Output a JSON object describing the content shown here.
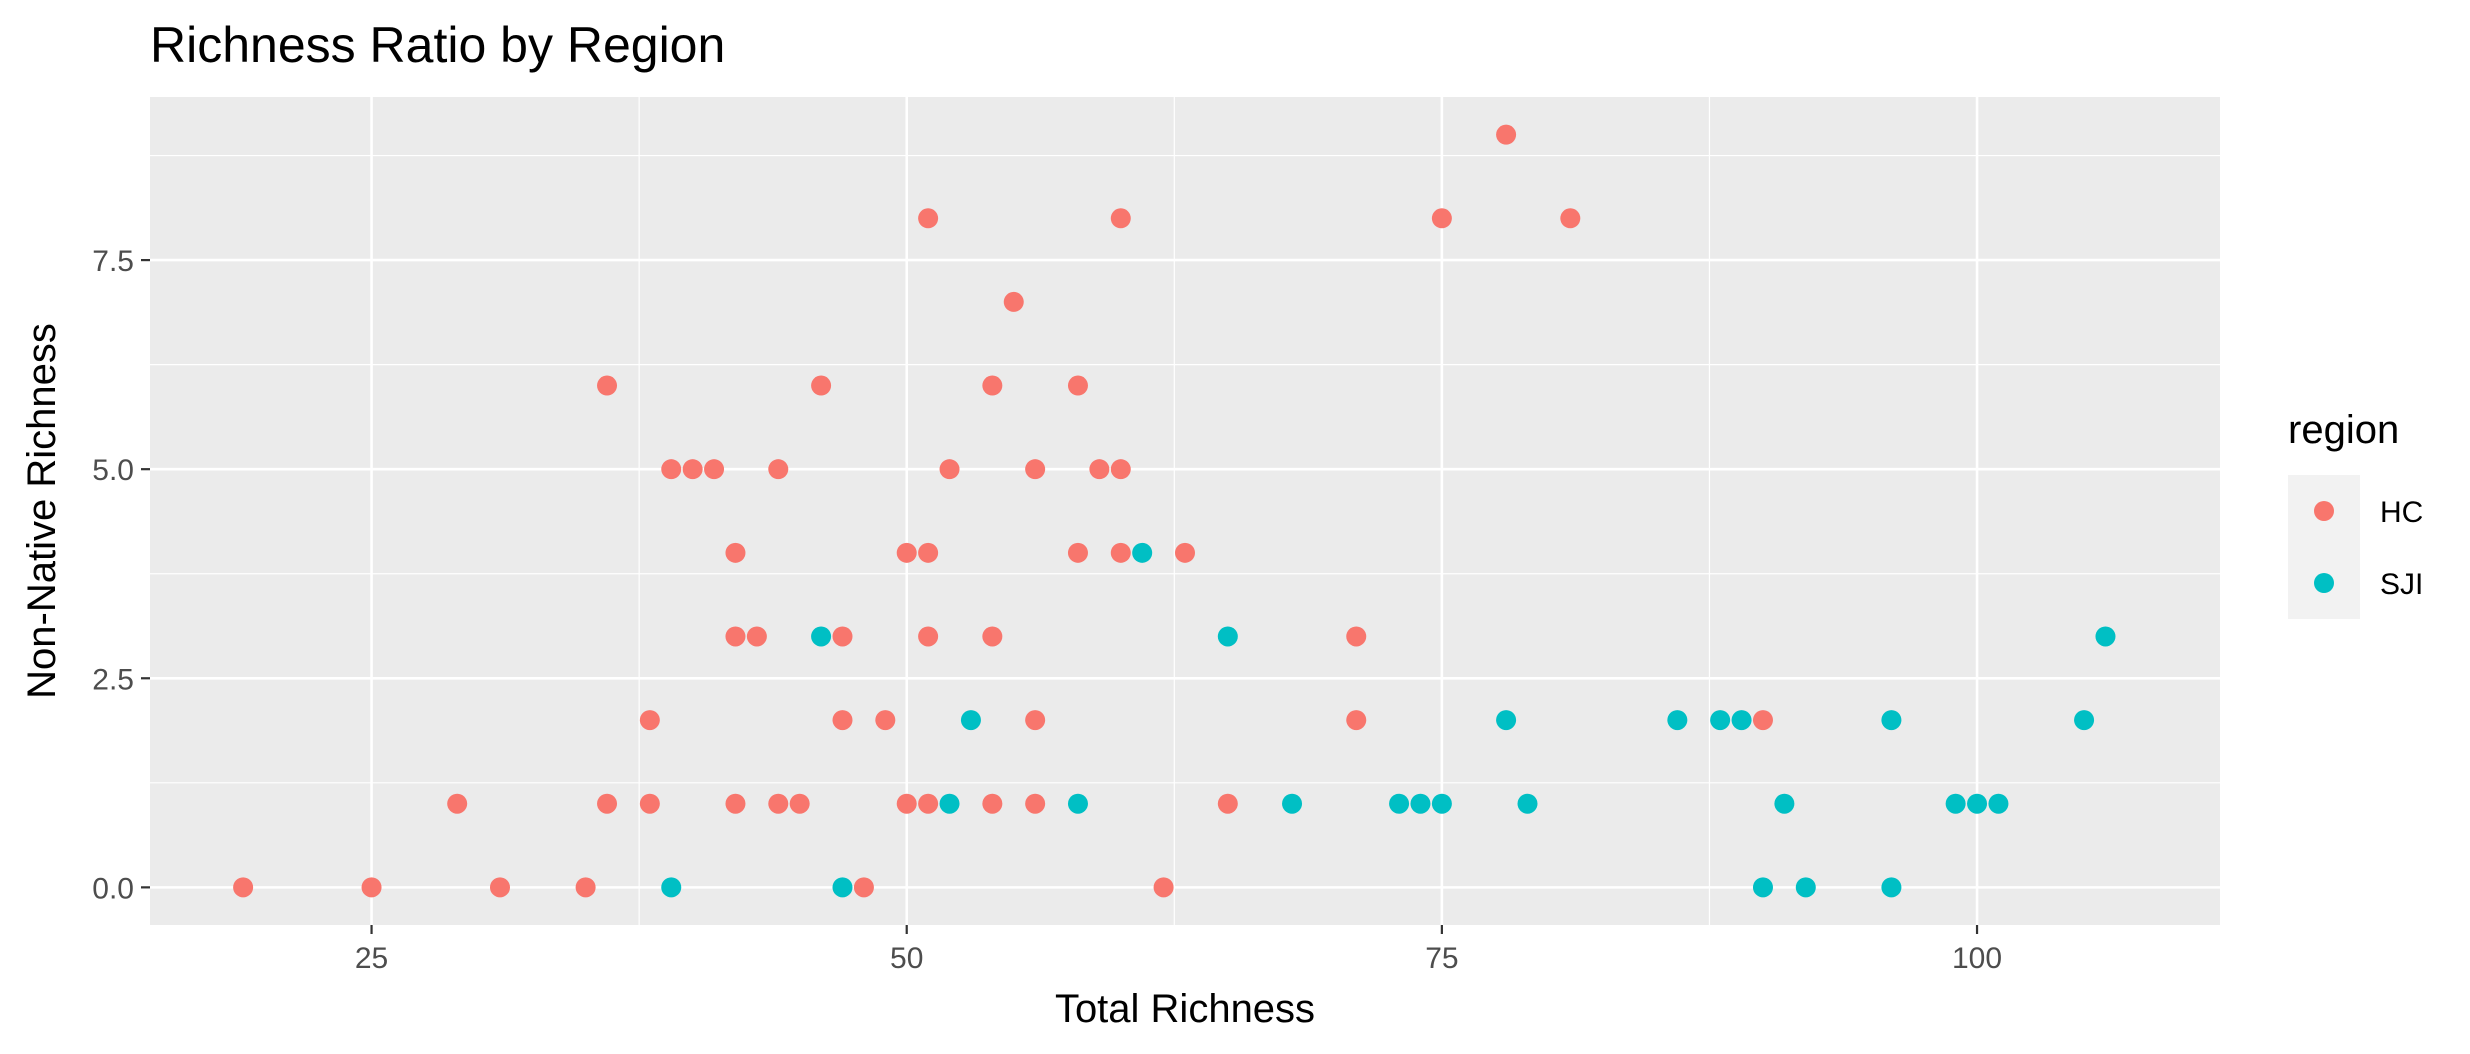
{
  "chart_data": {
    "type": "scatter",
    "title": "Richness Ratio by Region",
    "xlabel": "Total Richness",
    "ylabel": "Non-Native Richness",
    "xlim": [
      14.65,
      111.35
    ],
    "ylim": [
      -0.45,
      9.45
    ],
    "x_ticks": [
      25,
      50,
      75,
      100
    ],
    "x_tick_labels": [
      "25",
      "50",
      "75",
      "100"
    ],
    "y_ticks": [
      0,
      2.5,
      5,
      7.5
    ],
    "y_tick_labels": [
      "0.0",
      "2.5",
      "5.0",
      "7.5"
    ],
    "grid": true,
    "legend": {
      "title": "region",
      "position": "right"
    },
    "series": [
      {
        "name": "HC",
        "color": "#F8766D",
        "points": [
          [
            19,
            0
          ],
          [
            25,
            0
          ],
          [
            31,
            0
          ],
          [
            35,
            0
          ],
          [
            48,
            0
          ],
          [
            62,
            0
          ],
          [
            29,
            1
          ],
          [
            36,
            1
          ],
          [
            38,
            1
          ],
          [
            42,
            1
          ],
          [
            44,
            1
          ],
          [
            45,
            1
          ],
          [
            50,
            1
          ],
          [
            51,
            1
          ],
          [
            54,
            1
          ],
          [
            56,
            1
          ],
          [
            65,
            1
          ],
          [
            38,
            2
          ],
          [
            47,
            2
          ],
          [
            49,
            2
          ],
          [
            56,
            2
          ],
          [
            71,
            2
          ],
          [
            90,
            2
          ],
          [
            42,
            3
          ],
          [
            43,
            3
          ],
          [
            47,
            3
          ],
          [
            51,
            3
          ],
          [
            54,
            3
          ],
          [
            71,
            3
          ],
          [
            42,
            4
          ],
          [
            50,
            4
          ],
          [
            51,
            4
          ],
          [
            58,
            4
          ],
          [
            60,
            4
          ],
          [
            63,
            4
          ],
          [
            39,
            5
          ],
          [
            40,
            5
          ],
          [
            41,
            5
          ],
          [
            44,
            5
          ],
          [
            52,
            5
          ],
          [
            56,
            5
          ],
          [
            59,
            5
          ],
          [
            60,
            5
          ],
          [
            36,
            6
          ],
          [
            46,
            6
          ],
          [
            54,
            6
          ],
          [
            58,
            6
          ],
          [
            55,
            7
          ],
          [
            51,
            8
          ],
          [
            60,
            8
          ],
          [
            75,
            8
          ],
          [
            81,
            8
          ],
          [
            78,
            9
          ]
        ]
      },
      {
        "name": "SJI",
        "color": "#00BFC4",
        "points": [
          [
            39,
            0
          ],
          [
            47,
            0
          ],
          [
            90,
            0
          ],
          [
            92,
            0
          ],
          [
            96,
            0
          ],
          [
            52,
            1
          ],
          [
            58,
            1
          ],
          [
            68,
            1
          ],
          [
            73,
            1
          ],
          [
            74,
            1
          ],
          [
            75,
            1
          ],
          [
            79,
            1
          ],
          [
            91,
            1
          ],
          [
            99,
            1
          ],
          [
            100,
            1
          ],
          [
            101,
            1
          ],
          [
            53,
            2
          ],
          [
            78,
            2
          ],
          [
            86,
            2
          ],
          [
            88,
            2
          ],
          [
            89,
            2
          ],
          [
            96,
            2
          ],
          [
            105,
            2
          ],
          [
            46,
            3
          ],
          [
            65,
            3
          ],
          [
            106,
            3
          ],
          [
            61,
            4
          ]
        ]
      }
    ]
  }
}
